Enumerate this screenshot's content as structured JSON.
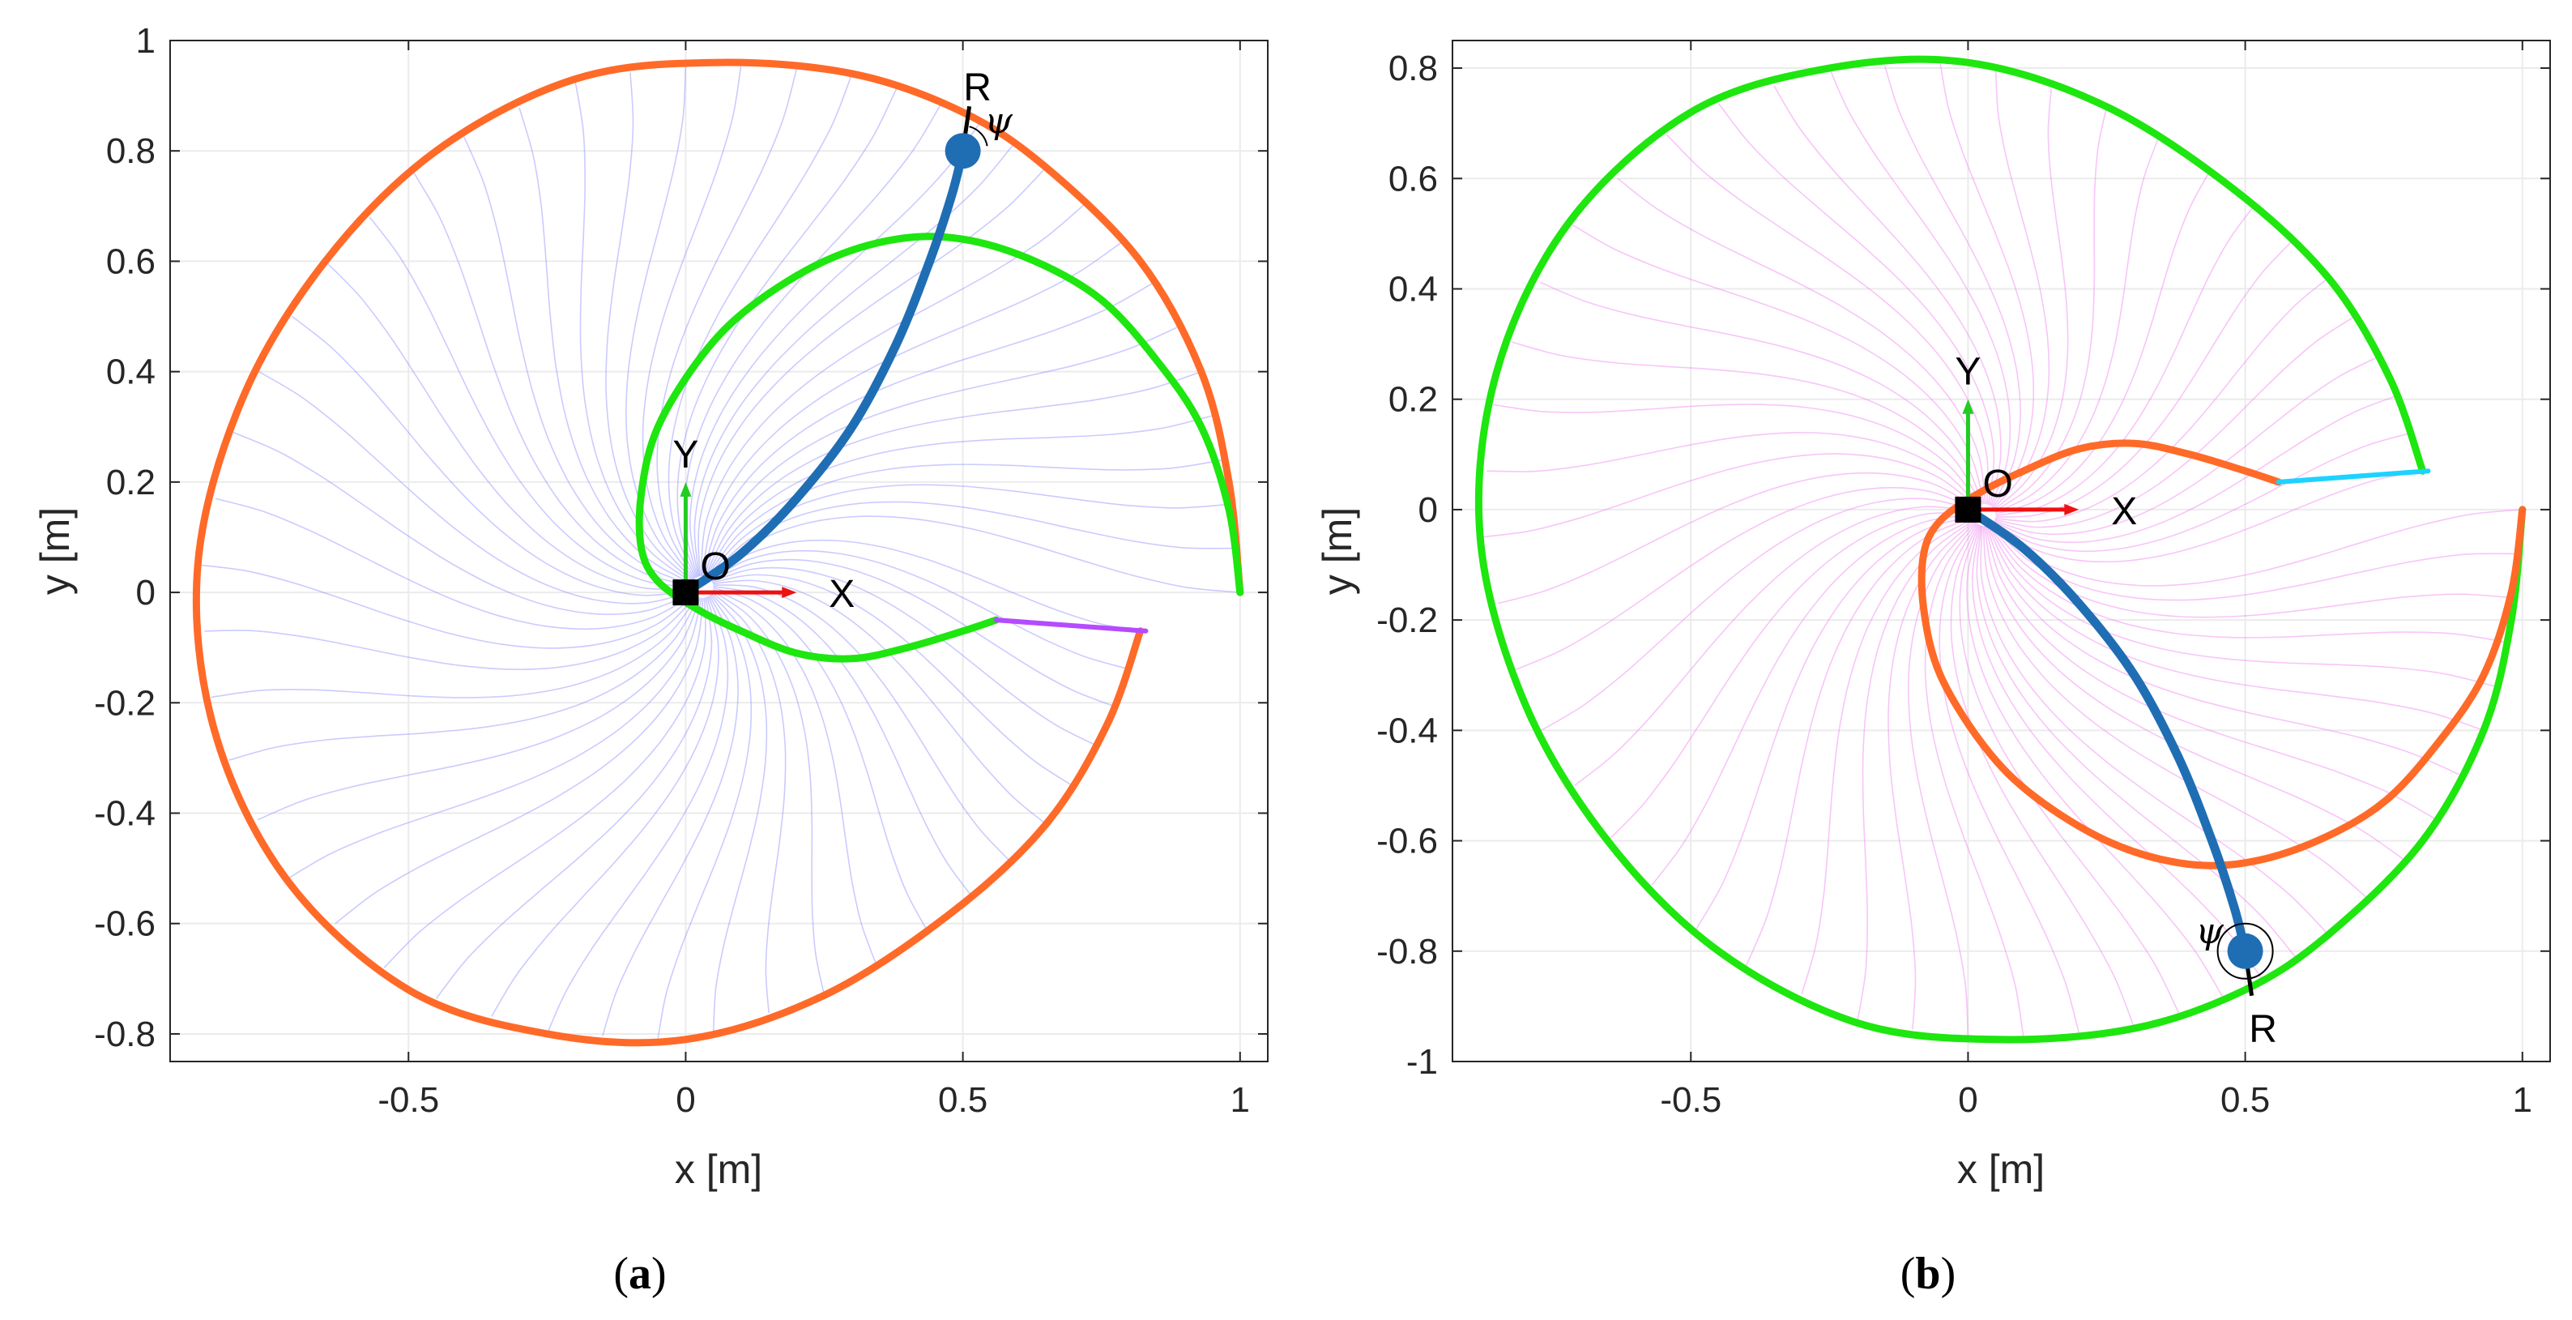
{
  "colors": {
    "grid": "#ebebeb",
    "axis": "#262626",
    "orange": "#ff6a28",
    "green": "#1ee60f",
    "blue_path": "#1f6eb4",
    "purple": "#b44bff",
    "cyan": "#1ed2ff",
    "field_a": "#8c8cff",
    "field_b": "#f07ef0",
    "frame_x": "#ee1111",
    "frame_y": "#22cc22"
  },
  "chart_data": [
    {
      "panel": "a",
      "type": "line",
      "caption_letter": "a",
      "xlabel": "x [m]",
      "ylabel": "y [m]",
      "xlim": [
        -0.93,
        1.05
      ],
      "ylim": [
        -0.85,
        1.0
      ],
      "xticks": [
        -0.5,
        0,
        0.5,
        1
      ],
      "xtick_labels": [
        "-0.5",
        "0",
        "0.5",
        "1"
      ],
      "yticks": [
        -0.8,
        -0.6,
        -0.4,
        -0.2,
        0,
        0.2,
        0.4,
        0.6,
        0.8,
        1
      ],
      "ytick_labels": [
        "-0.8",
        "-0.6",
        "-0.4",
        "-0.2",
        "0",
        "0.2",
        "0.4",
        "0.6",
        "0.8",
        "1"
      ],
      "grid": true,
      "spiral_center": [
        0.03,
        0.01
      ],
      "outer_boundary": {
        "color": "orange",
        "points": [
          [
            1.0,
            0.0
          ],
          [
            0.98,
            0.2
          ],
          [
            0.93,
            0.4
          ],
          [
            0.82,
            0.6
          ],
          [
            0.65,
            0.77
          ],
          [
            0.5,
            0.87
          ],
          [
            0.3,
            0.94
          ],
          [
            0.05,
            0.96
          ],
          [
            -0.2,
            0.93
          ],
          [
            -0.45,
            0.8
          ],
          [
            -0.65,
            0.6
          ],
          [
            -0.8,
            0.35
          ],
          [
            -0.88,
            0.05
          ],
          [
            -0.85,
            -0.25
          ],
          [
            -0.72,
            -0.52
          ],
          [
            -0.5,
            -0.72
          ],
          [
            -0.25,
            -0.8
          ],
          [
            0.0,
            -0.81
          ],
          [
            0.25,
            -0.73
          ],
          [
            0.48,
            -0.58
          ],
          [
            0.65,
            -0.42
          ],
          [
            0.76,
            -0.24
          ],
          [
            0.82,
            -0.07
          ]
        ]
      },
      "inner_boundary": {
        "color": "green",
        "points": [
          [
            1.0,
            0.0
          ],
          [
            0.98,
            0.15
          ],
          [
            0.93,
            0.3
          ],
          [
            0.85,
            0.42
          ],
          [
            0.75,
            0.53
          ],
          [
            0.63,
            0.6
          ],
          [
            0.5,
            0.64
          ],
          [
            0.38,
            0.64
          ],
          [
            0.25,
            0.6
          ],
          [
            0.12,
            0.52
          ],
          [
            0.03,
            0.43
          ],
          [
            -0.05,
            0.3
          ],
          [
            -0.08,
            0.18
          ],
          [
            -0.08,
            0.08
          ],
          [
            -0.05,
            0.02
          ],
          [
            0.02,
            -0.03
          ],
          [
            0.1,
            -0.07
          ],
          [
            0.2,
            -0.11
          ],
          [
            0.3,
            -0.12
          ],
          [
            0.4,
            -0.1
          ],
          [
            0.5,
            -0.07
          ],
          [
            0.56,
            -0.05
          ]
        ]
      },
      "terminal_segment": {
        "color": "purple",
        "points": [
          [
            0.56,
            -0.05
          ],
          [
            0.83,
            -0.07
          ]
        ]
      },
      "example_path": {
        "color": "blue_path",
        "points": [
          [
            0.0,
            0.0
          ],
          [
            0.1,
            0.07
          ],
          [
            0.2,
            0.17
          ],
          [
            0.3,
            0.3
          ],
          [
            0.38,
            0.45
          ],
          [
            0.44,
            0.6
          ],
          [
            0.48,
            0.72
          ],
          [
            0.5,
            0.8
          ]
        ]
      },
      "frame": {
        "origin": [
          0.0,
          0.0
        ],
        "origin_label": "O",
        "x_label": "X",
        "y_label": "Y",
        "axis_length": 0.2
      },
      "robot": {
        "position": [
          0.5,
          0.8
        ],
        "label": "R",
        "heading_label": "ψ"
      },
      "field_color": "field_a",
      "field_lines": 56
    },
    {
      "panel": "b",
      "type": "line",
      "caption_letter": "b",
      "xlabel": "x [m]",
      "ylabel": "y [m]",
      "xlim": [
        -0.93,
        1.05
      ],
      "ylim": [
        -1.0,
        0.85
      ],
      "xticks": [
        -0.5,
        0,
        0.5,
        1
      ],
      "xtick_labels": [
        "-0.5",
        "0",
        "0.5",
        "1"
      ],
      "yticks": [
        -1,
        -0.8,
        -0.6,
        -0.4,
        -0.2,
        0,
        0.2,
        0.4,
        0.6,
        0.8
      ],
      "ytick_labels": [
        "-1",
        "-0.8",
        "-0.6",
        "-0.4",
        "-0.2",
        "0",
        "0.2",
        "0.4",
        "0.6",
        "0.8"
      ],
      "grid": true,
      "spiral_center": [
        0.03,
        -0.01
      ],
      "outer_boundary": {
        "color": "green",
        "points": [
          [
            1.0,
            0.0
          ],
          [
            0.98,
            -0.2
          ],
          [
            0.93,
            -0.4
          ],
          [
            0.82,
            -0.6
          ],
          [
            0.65,
            -0.77
          ],
          [
            0.5,
            -0.87
          ],
          [
            0.3,
            -0.94
          ],
          [
            0.05,
            -0.96
          ],
          [
            -0.2,
            -0.93
          ],
          [
            -0.45,
            -0.8
          ],
          [
            -0.65,
            -0.6
          ],
          [
            -0.8,
            -0.35
          ],
          [
            -0.88,
            -0.05
          ],
          [
            -0.85,
            0.25
          ],
          [
            -0.72,
            0.52
          ],
          [
            -0.5,
            0.72
          ],
          [
            -0.25,
            0.8
          ],
          [
            0.0,
            0.81
          ],
          [
            0.25,
            0.73
          ],
          [
            0.48,
            0.58
          ],
          [
            0.65,
            0.42
          ],
          [
            0.76,
            0.24
          ],
          [
            0.82,
            0.07
          ]
        ]
      },
      "inner_boundary": {
        "color": "orange",
        "points": [
          [
            1.0,
            0.0
          ],
          [
            0.98,
            -0.15
          ],
          [
            0.93,
            -0.3
          ],
          [
            0.85,
            -0.42
          ],
          [
            0.75,
            -0.53
          ],
          [
            0.63,
            -0.6
          ],
          [
            0.5,
            -0.64
          ],
          [
            0.38,
            -0.64
          ],
          [
            0.25,
            -0.6
          ],
          [
            0.12,
            -0.52
          ],
          [
            0.03,
            -0.43
          ],
          [
            -0.05,
            -0.3
          ],
          [
            -0.08,
            -0.18
          ],
          [
            -0.08,
            -0.08
          ],
          [
            -0.05,
            -0.02
          ],
          [
            0.02,
            0.03
          ],
          [
            0.1,
            0.07
          ],
          [
            0.2,
            0.11
          ],
          [
            0.3,
            0.12
          ],
          [
            0.4,
            0.1
          ],
          [
            0.5,
            0.07
          ],
          [
            0.56,
            0.05
          ]
        ]
      },
      "terminal_segment": {
        "color": "cyan",
        "points": [
          [
            0.56,
            0.05
          ],
          [
            0.83,
            0.07
          ]
        ]
      },
      "example_path": {
        "color": "blue_path",
        "points": [
          [
            0.0,
            0.0
          ],
          [
            0.1,
            -0.07
          ],
          [
            0.2,
            -0.17
          ],
          [
            0.3,
            -0.3
          ],
          [
            0.38,
            -0.45
          ],
          [
            0.44,
            -0.6
          ],
          [
            0.48,
            -0.72
          ],
          [
            0.5,
            -0.8
          ]
        ]
      },
      "frame": {
        "origin": [
          0.0,
          0.0
        ],
        "origin_label": "O",
        "x_label": "X",
        "y_label": "Y",
        "axis_length": 0.2
      },
      "robot": {
        "position": [
          0.5,
          -0.8
        ],
        "label": "R",
        "heading_label": "ψ"
      },
      "field_color": "field_b",
      "field_lines": 56
    }
  ]
}
